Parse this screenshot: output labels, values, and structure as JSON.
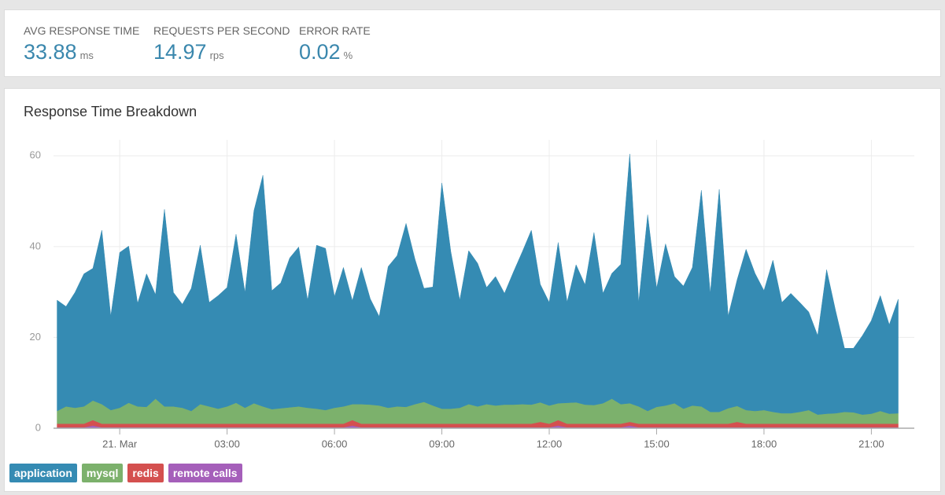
{
  "stats": [
    {
      "label": "AVG RESPONSE TIME",
      "value": 33.88,
      "unit": "ms"
    },
    {
      "label": "REQUESTS PER SECOND",
      "value": 14.97,
      "unit": "rps"
    },
    {
      "label": "ERROR RATE",
      "value": 0.02,
      "unit": "%"
    }
  ],
  "chart_data": {
    "type": "stacked-area",
    "title": "Response Time Breakdown",
    "x": [
      -1.75,
      -1.5,
      -1.25,
      -1,
      -0.75,
      -0.5,
      -0.25,
      0,
      0.25,
      0.5,
      0.75,
      1,
      1.25,
      1.5,
      1.75,
      2,
      2.25,
      2.5,
      2.75,
      3,
      3.25,
      3.5,
      3.75,
      4,
      4.25,
      4.5,
      4.75,
      5,
      5.25,
      5.5,
      5.75,
      6,
      6.25,
      6.5,
      6.75,
      7,
      7.25,
      7.5,
      7.75,
      8,
      8.25,
      8.5,
      8.75,
      9,
      9.25,
      9.5,
      9.75,
      10,
      10.25,
      10.5,
      10.75,
      11,
      11.25,
      11.5,
      11.75,
      12,
      12.25,
      12.5,
      12.75,
      13,
      13.25,
      13.5,
      13.75,
      14,
      14.25,
      14.5,
      14.75,
      15,
      15.25,
      15.5,
      15.75,
      16,
      16.25,
      16.5,
      16.75,
      17,
      17.25,
      17.5,
      17.75,
      18,
      18.25,
      18.5,
      18.75,
      19,
      19.25,
      19.5,
      19.75,
      20,
      20.25,
      20.5,
      20.75,
      21,
      21.25,
      21.5,
      21.75
    ],
    "xlim": [
      -1.85,
      22.2
    ],
    "xticks": [
      {
        "value": 0,
        "label": "21. Mar"
      },
      {
        "value": 3,
        "label": "03:00"
      },
      {
        "value": 6,
        "label": "06:00"
      },
      {
        "value": 9,
        "label": "09:00"
      },
      {
        "value": 12,
        "label": "12:00"
      },
      {
        "value": 15,
        "label": "15:00"
      },
      {
        "value": 18,
        "label": "18:00"
      },
      {
        "value": 21,
        "label": "21:00"
      }
    ],
    "ylim": [
      0,
      63.5
    ],
    "yticks": [
      0,
      20,
      40,
      60
    ],
    "grid": true,
    "series": [
      {
        "name": "application",
        "color": "#358bb3",
        "values": [
          24.4,
          22.0,
          25.4,
          29.2,
          29.1,
          38.3,
          20.7,
          34.2,
          34.5,
          22.7,
          29.3,
          22.9,
          43.4,
          25.1,
          22.8,
          27.0,
          35.0,
          22.9,
          24.9,
          26.2,
          37.1,
          25.4,
          42.4,
          50.9,
          26.1,
          27.6,
          32.9,
          35.1,
          23.7,
          36.0,
          35.6,
          24.5,
          30.6,
          22.8,
          30.1,
          23.3,
          19.6,
          31.1,
          33.2,
          40.4,
          31.9,
          25.0,
          26.1,
          49.7,
          34.6,
          23.7,
          33.8,
          31.5,
          25.7,
          28.4,
          24.5,
          29.2,
          33.6,
          38.4,
          26.0,
          22.7,
          35.4,
          22.2,
          30.3,
          26.4,
          38.0,
          24.2,
          27.6,
          30.8,
          54.9,
          22.9,
          43.2,
          26.1,
          35.6,
          27.9,
          27.0,
          30.4,
          47.6,
          26.1,
          49.0,
          20.3,
          27.8,
          35.4,
          30.3,
          26.3,
          33.4,
          24.4,
          26.4,
          24.1,
          21.6,
          17.4,
          31.7,
          22.6,
          14.0,
          14.1,
          17.4,
          20.5,
          25.4,
          19.6,
          25.1
        ]
      },
      {
        "name": "mysql",
        "color": "#7cb16c",
        "values": [
          2.8,
          3.8,
          3.5,
          3.8,
          4.3,
          4.3,
          3.0,
          3.5,
          4.6,
          3.8,
          3.7,
          5.5,
          3.8,
          3.8,
          3.5,
          2.8,
          4.3,
          3.8,
          3.3,
          3.8,
          4.6,
          3.5,
          4.5,
          3.8,
          3.2,
          3.4,
          3.6,
          3.8,
          3.5,
          3.3,
          3.0,
          3.5,
          3.8,
          3.5,
          4.3,
          4.2,
          4.0,
          3.5,
          3.8,
          3.7,
          4.3,
          4.8,
          4.0,
          3.3,
          3.3,
          3.5,
          4.3,
          3.8,
          4.3,
          4.0,
          4.2,
          4.2,
          4.3,
          4.2,
          4.3,
          4.0,
          3.7,
          4.6,
          4.7,
          4.2,
          4.1,
          4.5,
          5.5,
          4.3,
          4.1,
          3.8,
          2.8,
          3.7,
          4.0,
          4.5,
          3.3,
          4.0,
          3.8,
          2.6,
          2.6,
          3.4,
          3.5,
          3.0,
          2.8,
          3.0,
          2.6,
          2.3,
          2.3,
          2.6,
          3.0,
          2.0,
          2.2,
          2.3,
          2.6,
          2.5,
          2.0,
          2.2,
          2.8,
          2.2,
          2.3
        ]
      },
      {
        "name": "redis",
        "color": "#d4504f",
        "values": [
          0.8,
          0.8,
          0.8,
          0.8,
          1.2,
          0.8,
          0.8,
          0.8,
          0.8,
          0.8,
          0.8,
          0.8,
          0.8,
          0.8,
          0.8,
          0.8,
          0.8,
          0.8,
          0.8,
          0.8,
          0.8,
          0.8,
          0.8,
          0.8,
          0.8,
          0.8,
          0.8,
          0.8,
          0.8,
          0.8,
          0.8,
          0.8,
          0.8,
          1.2,
          0.8,
          0.8,
          0.8,
          0.8,
          0.8,
          0.8,
          0.8,
          0.8,
          0.8,
          0.8,
          0.8,
          0.8,
          0.8,
          0.8,
          0.8,
          0.8,
          0.8,
          0.8,
          0.8,
          0.8,
          1.2,
          0.8,
          1.2,
          0.8,
          0.8,
          0.8,
          0.8,
          0.8,
          0.8,
          0.8,
          0.8,
          0.8,
          0.8,
          0.8,
          0.8,
          0.8,
          0.8,
          0.8,
          0.8,
          0.8,
          0.8,
          0.8,
          1.2,
          0.8,
          0.8,
          0.8,
          0.8,
          0.8,
          0.8,
          0.8,
          0.8,
          0.8,
          0.8,
          0.8,
          0.8,
          0.8,
          0.8,
          0.8,
          0.8,
          0.8,
          0.8
        ]
      },
      {
        "name": "remote calls",
        "color": "#a55fba",
        "values": [
          0.2,
          0.2,
          0.2,
          0.2,
          0.6,
          0.2,
          0.2,
          0.2,
          0.2,
          0.2,
          0.2,
          0.2,
          0.2,
          0.2,
          0.2,
          0.2,
          0.2,
          0.2,
          0.2,
          0.2,
          0.2,
          0.2,
          0.2,
          0.2,
          0.2,
          0.2,
          0.2,
          0.2,
          0.2,
          0.2,
          0.2,
          0.2,
          0.2,
          0.6,
          0.2,
          0.2,
          0.2,
          0.2,
          0.2,
          0.2,
          0.2,
          0.2,
          0.2,
          0.2,
          0.2,
          0.2,
          0.2,
          0.2,
          0.2,
          0.2,
          0.2,
          0.2,
          0.2,
          0.2,
          0.2,
          0.2,
          0.6,
          0.2,
          0.2,
          0.2,
          0.2,
          0.2,
          0.2,
          0.2,
          0.6,
          0.2,
          0.2,
          0.2,
          0.2,
          0.2,
          0.2,
          0.2,
          0.2,
          0.2,
          0.2,
          0.2,
          0.2,
          0.2,
          0.2,
          0.2,
          0.2,
          0.2,
          0.2,
          0.2,
          0.2,
          0.2,
          0.2,
          0.2,
          0.2,
          0.2,
          0.2,
          0.2,
          0.2,
          0.2,
          0.2
        ]
      }
    ]
  }
}
